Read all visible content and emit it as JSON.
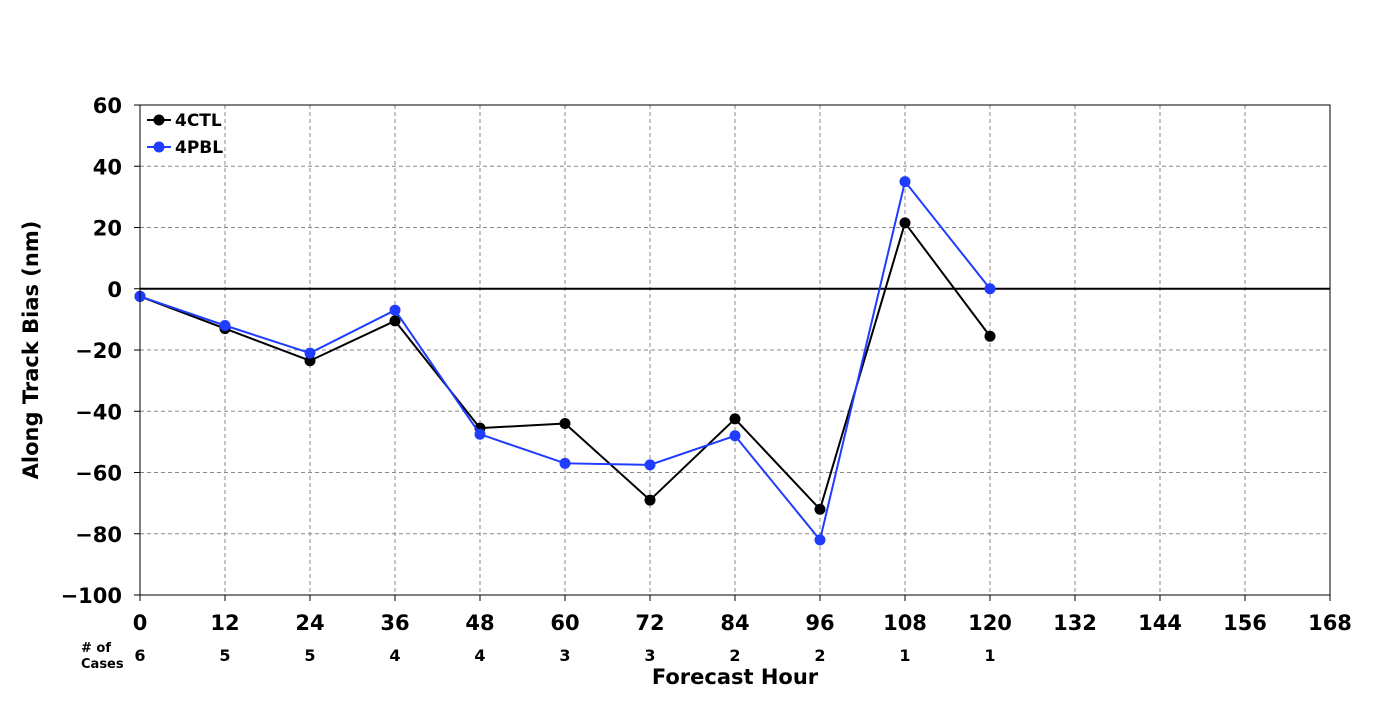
{
  "chart_data": {
    "type": "line",
    "title": "",
    "xlabel": "Forecast Hour",
    "ylabel": "Along Track Bias (nm)",
    "xlim": [
      0,
      168
    ],
    "ylim": [
      -100,
      60
    ],
    "x_ticks": [
      0,
      12,
      24,
      36,
      48,
      60,
      72,
      84,
      96,
      108,
      120,
      132,
      144,
      156,
      168
    ],
    "x_tick_labels": [
      "0",
      "12",
      "24",
      "36",
      "48",
      "60",
      "72",
      "84",
      "96",
      "108",
      "120",
      "132",
      "144",
      "156",
      "168"
    ],
    "y_ticks": [
      -100,
      -80,
      -60,
      -40,
      -20,
      0,
      20,
      40,
      60
    ],
    "y_tick_labels": [
      "−100",
      "−80",
      "−60",
      "−40",
      "−20",
      "0",
      "20",
      "40",
      "60"
    ],
    "grid": true,
    "zero_line": true,
    "legend_position": "top-left",
    "series": [
      {
        "name": "4CTL",
        "color": "#000000",
        "x": [
          0,
          12,
          24,
          36,
          48,
          60,
          72,
          84,
          96,
          108,
          120
        ],
        "values": [
          -2.5,
          -13,
          -23.5,
          -10.5,
          -45.5,
          -44,
          -69,
          -42.5,
          -72,
          21.5,
          -15.5
        ]
      },
      {
        "name": "4PBL",
        "color": "#1f3cff",
        "x": [
          0,
          12,
          24,
          36,
          48,
          60,
          72,
          84,
          96,
          108,
          120
        ],
        "values": [
          -2.5,
          -12,
          -21,
          -7,
          -47.5,
          -57,
          -57.5,
          -48,
          -82,
          35,
          0
        ]
      }
    ],
    "cases": {
      "header": "# of\nCases",
      "x": [
        0,
        12,
        24,
        36,
        48,
        60,
        72,
        84,
        96,
        108,
        120
      ],
      "counts": [
        "6",
        "5",
        "5",
        "4",
        "4",
        "3",
        "3",
        "2",
        "2",
        "1",
        "1"
      ]
    }
  }
}
